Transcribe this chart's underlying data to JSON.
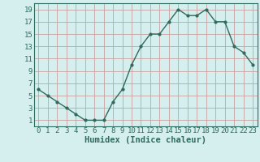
{
  "x": [
    0,
    1,
    2,
    3,
    4,
    5,
    6,
    7,
    8,
    9,
    10,
    11,
    12,
    13,
    14,
    15,
    16,
    17,
    18,
    19,
    20,
    21,
    22,
    23
  ],
  "y": [
    6,
    5,
    4,
    3,
    2,
    1,
    1,
    1,
    4,
    6,
    10,
    13,
    15,
    15,
    17,
    19,
    18,
    18,
    19,
    17,
    17,
    13,
    12,
    10
  ],
  "line_color": "#2e6b5e",
  "marker": "o",
  "marker_size": 2.0,
  "background_color": "#d5eeee",
  "grid_color": "#c8a0a0",
  "xlabel": "Humidex (Indice chaleur)",
  "xlim": [
    -0.5,
    23.5
  ],
  "ylim": [
    0,
    20
  ],
  "xticks": [
    0,
    1,
    2,
    3,
    4,
    5,
    6,
    7,
    8,
    9,
    10,
    11,
    12,
    13,
    14,
    15,
    16,
    17,
    18,
    19,
    20,
    21,
    22,
    23
  ],
  "yticks": [
    1,
    3,
    5,
    7,
    9,
    11,
    13,
    15,
    17,
    19
  ],
  "xlabel_fontsize": 7.5,
  "tick_fontsize": 6.5,
  "line_width": 1.0
}
